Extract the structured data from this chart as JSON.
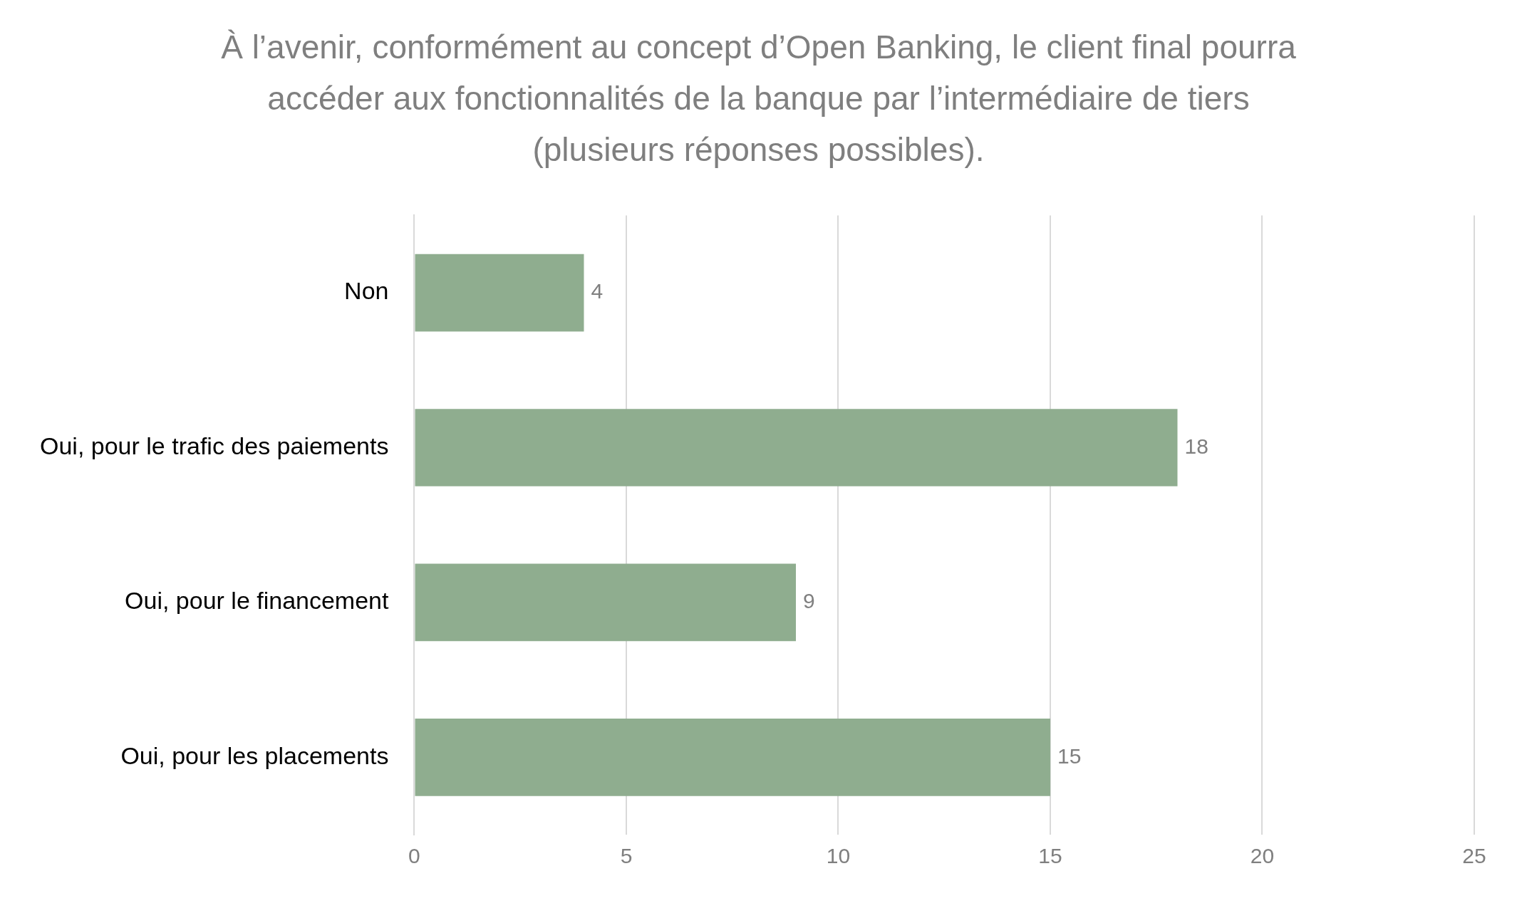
{
  "chart_data": {
    "type": "bar",
    "orientation": "horizontal",
    "title": "À l’avenir, conformément au concept d’Open Banking, le client final pourra accéder aux fonctionnalités de la banque par l’intermédiaire de tiers (plusieurs réponses possibles).",
    "categories": [
      "Non",
      "Oui, pour le trafic des paiements",
      "Oui, pour le financement",
      "Oui, pour les placements"
    ],
    "values": [
      4,
      18,
      9,
      15
    ],
    "color": "#8fad8f",
    "xlim": [
      0,
      25
    ],
    "xticks": [
      0,
      5,
      10,
      15,
      20,
      25
    ],
    "grid": "x",
    "data_labels": true,
    "legend": false
  }
}
